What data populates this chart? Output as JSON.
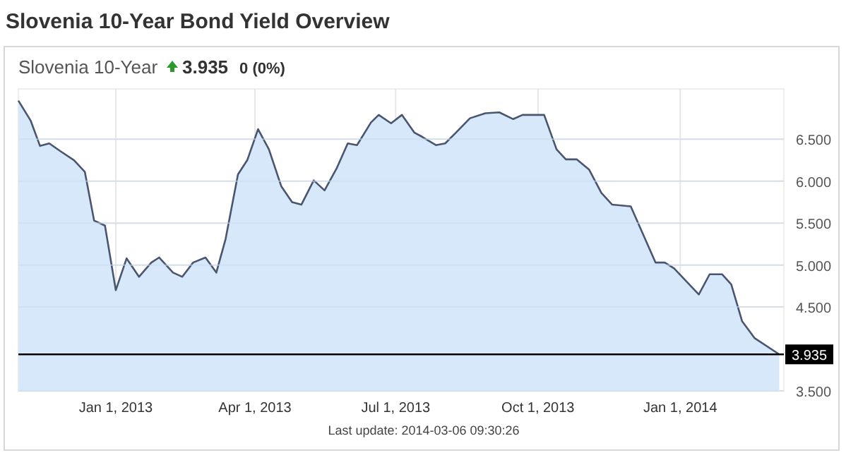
{
  "chart_data": {
    "type": "area",
    "title": "Slovenia 10-Year Bond Yield Overview",
    "subtitle": "Slovenia 10-Year",
    "annotations": [
      "3.935",
      "0 (0%)",
      "Last update: 2014-03-06 09:30:26"
    ],
    "x": [
      "2012-10-30",
      "2012-11-07",
      "2012-11-13",
      "2012-11-19",
      "2012-11-26",
      "2012-12-05",
      "2012-12-12",
      "2012-12-18",
      "2012-12-25",
      "2013-01-01",
      "2013-01-08",
      "2013-01-16",
      "2013-01-24",
      "2013-01-29",
      "2013-02-07",
      "2013-02-13",
      "2013-02-20",
      "2013-02-28",
      "2013-03-07",
      "2013-03-13",
      "2013-03-21",
      "2013-03-27",
      "2013-04-03",
      "2013-04-10",
      "2013-04-18",
      "2013-04-25",
      "2013-05-01",
      "2013-05-09",
      "2013-05-16",
      "2013-05-24",
      "2013-05-31",
      "2013-06-06",
      "2013-06-15",
      "2013-06-20",
      "2013-06-28",
      "2013-07-05",
      "2013-07-13",
      "2013-07-18",
      "2013-07-27",
      "2013-08-02",
      "2013-08-09",
      "2013-08-18",
      "2013-08-28",
      "2013-09-06",
      "2013-09-15",
      "2013-09-21",
      "2013-10-05",
      "2013-10-13",
      "2013-10-19",
      "2013-10-26",
      "2013-11-03",
      "2013-11-11",
      "2013-11-18",
      "2013-11-30",
      "2013-12-16",
      "2013-12-22",
      "2013-12-28",
      "2014-01-13",
      "2014-01-20",
      "2014-01-28",
      "2014-02-03",
      "2014-02-10",
      "2014-02-18",
      "2014-03-06"
    ],
    "series": [
      {
        "color": "#4a5670",
        "values": [
          6.96,
          6.72,
          6.42,
          6.45,
          6.36,
          6.25,
          6.11,
          5.53,
          5.47,
          4.7,
          5.08,
          4.86,
          5.03,
          5.09,
          4.91,
          4.86,
          5.03,
          5.09,
          4.91,
          5.31,
          6.08,
          6.25,
          6.62,
          6.38,
          5.94,
          5.75,
          5.72,
          6.01,
          5.89,
          6.16,
          6.45,
          6.43,
          6.7,
          6.79,
          6.69,
          6.79,
          6.58,
          6.53,
          6.43,
          6.45,
          6.58,
          6.75,
          6.81,
          6.82,
          6.74,
          6.79,
          6.79,
          6.38,
          6.26,
          6.26,
          6.14,
          5.86,
          5.72,
          5.7,
          5.03,
          5.03,
          4.96,
          4.65,
          4.89,
          4.89,
          4.77,
          4.33,
          4.13,
          3.935
        ]
      }
    ],
    "xlim": [
      "2012-10-30",
      "2014-03-09"
    ],
    "xticks": [
      {
        "value": "2013-01-01",
        "label": "Jan 1, 2013"
      },
      {
        "value": "2013-04-01",
        "label": "Apr 1, 2013"
      },
      {
        "value": "2013-07-01",
        "label": "Jul 1, 2013"
      },
      {
        "value": "2013-10-01",
        "label": "Oct 1, 2013"
      },
      {
        "value": "2014-01-01",
        "label": "Jan 1, 2014"
      }
    ],
    "ylim": [
      3.5,
      7.1
    ],
    "yticks": [
      {
        "value": 3.5,
        "label": "3.500"
      },
      {
        "value": 4.5,
        "label": "4.500"
      },
      {
        "value": 5,
        "label": "5.000"
      },
      {
        "value": 5.5,
        "label": "5.500"
      },
      {
        "value": 6,
        "label": "6.000"
      },
      {
        "value": 6.5,
        "label": "6.500"
      }
    ],
    "ref_lines": [
      {
        "axis": "y",
        "value": 3.935,
        "label": "3.935",
        "color": "#000000"
      }
    ],
    "grid": true
  }
}
